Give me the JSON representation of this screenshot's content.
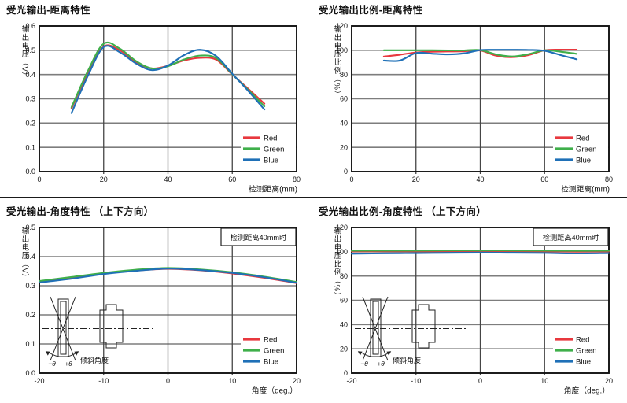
{
  "page": {
    "background": "#ffffff"
  },
  "chart_data": [
    {
      "type": "line",
      "title": "受光输出-距离特性",
      "xlabel": "检测距离(mm)",
      "ylabel": "输出电压（V）",
      "xlim": [
        0,
        80
      ],
      "ylim": [
        0,
        0.6
      ],
      "xticks": [
        0,
        20,
        40,
        60,
        80
      ],
      "xtick_labels": [
        "0",
        "20",
        "40",
        "60",
        "80"
      ],
      "yticks": [
        0,
        0.1,
        0.2,
        0.3,
        0.4,
        0.5,
        0.6
      ],
      "ytick_labels": [
        "0.0",
        "0.1",
        "0.2",
        "0.3",
        "0.4",
        "0.5",
        "0.6"
      ],
      "grid": true,
      "legend_position": "bottom-right",
      "x": [
        10,
        15,
        20,
        25,
        30,
        35,
        40,
        45,
        50,
        55,
        60,
        65,
        70
      ],
      "series": [
        {
          "name": "Red",
          "color": "#e8383e",
          "values": [
            0.26,
            0.405,
            0.515,
            0.5,
            0.452,
            0.425,
            0.436,
            0.458,
            0.469,
            0.461,
            0.4,
            0.341,
            0.28
          ]
        },
        {
          "name": "Green",
          "color": "#3faf4a",
          "values": [
            0.265,
            0.412,
            0.527,
            0.507,
            0.456,
            0.425,
            0.434,
            0.462,
            0.478,
            0.468,
            0.401,
            0.336,
            0.269
          ]
        },
        {
          "name": "Blue",
          "color": "#1f70b7",
          "values": [
            0.241,
            0.392,
            0.513,
            0.492,
            0.446,
            0.418,
            0.437,
            0.48,
            0.502,
            0.476,
            0.403,
            0.332,
            0.256
          ]
        }
      ]
    },
    {
      "type": "line",
      "title": "受光输出比例-距离特性",
      "xlabel": "检测距离(mm)",
      "ylabel": "输出电压比例（%）",
      "xlim": [
        0,
        80
      ],
      "ylim": [
        0,
        120
      ],
      "xticks": [
        0,
        20,
        40,
        60,
        80
      ],
      "xtick_labels": [
        "0",
        "20",
        "40",
        "60",
        "80"
      ],
      "yticks": [
        0,
        20,
        40,
        60,
        80,
        100,
        120
      ],
      "ytick_labels": [
        "0",
        "20",
        "40",
        "60",
        "80",
        "100",
        "120"
      ],
      "grid": true,
      "legend_position": "bottom-right",
      "x": [
        10,
        15,
        20,
        25,
        30,
        35,
        40,
        45,
        50,
        55,
        60,
        65,
        70
      ],
      "series": [
        {
          "name": "Red",
          "color": "#e8383e",
          "values": [
            94.8,
            96.3,
            98.2,
            98.8,
            99.0,
            99.2,
            99.8,
            95.5,
            94.3,
            96.0,
            100.0,
            100.5,
            100.5
          ]
        },
        {
          "name": "Green",
          "color": "#3faf4a",
          "values": [
            100.0,
            100.0,
            100.0,
            100.0,
            99.9,
            99.9,
            100.2,
            96.5,
            94.9,
            96.8,
            100.0,
            98.8,
            97.1
          ]
        },
        {
          "name": "Blue",
          "color": "#1f70b7",
          "values": [
            91.5,
            91.5,
            97.7,
            97.2,
            96.6,
            97.5,
            100.2,
            100.4,
            100.4,
            100.3,
            99.6,
            96.0,
            92.5
          ]
        }
      ]
    },
    {
      "type": "line",
      "title": "受光输出-角度特性 （上下方向）",
      "xlabel": "角度（deg.）",
      "ylabel": "输出电压（V）",
      "annotation": "检测距离40mm时",
      "xlim": [
        -20,
        20
      ],
      "ylim": [
        0,
        0.5
      ],
      "xticks": [
        -20,
        -10,
        0,
        10,
        20
      ],
      "xtick_labels": [
        "-20",
        "-10",
        "0",
        "10",
        "20"
      ],
      "yticks": [
        0,
        0.1,
        0.2,
        0.3,
        0.4,
        0.5
      ],
      "ytick_labels": [
        "0.0",
        "0.1",
        "0.2",
        "0.3",
        "0.4",
        "0.5"
      ],
      "grid": true,
      "legend_position": "bottom-right",
      "inset": {
        "neg_angle_label": "−θ",
        "pos_angle_label": "+θ",
        "caption": "倾斜角度"
      },
      "x": [
        -20,
        -15,
        -10,
        -5,
        0,
        5,
        10,
        15,
        20
      ],
      "series": [
        {
          "name": "Red",
          "color": "#e8383e",
          "values": [
            0.313,
            0.326,
            0.341,
            0.352,
            0.358,
            0.353,
            0.342,
            0.327,
            0.309
          ]
        },
        {
          "name": "Green",
          "color": "#3faf4a",
          "values": [
            0.316,
            0.33,
            0.344,
            0.355,
            0.361,
            0.356,
            0.346,
            0.331,
            0.313
          ]
        },
        {
          "name": "Blue",
          "color": "#1f70b7",
          "values": [
            0.311,
            0.324,
            0.34,
            0.351,
            0.359,
            0.354,
            0.344,
            0.329,
            0.31
          ]
        }
      ]
    },
    {
      "type": "line",
      "title": "受光输出比例-角度特性 （上下方向）",
      "xlabel": "角度（deg.）",
      "ylabel": "输出电压比例（%）",
      "annotation": "检测距离40mm时",
      "xlim": [
        -20,
        20
      ],
      "ylim": [
        0,
        120
      ],
      "xticks": [
        -20,
        -10,
        0,
        10,
        20
      ],
      "xtick_labels": [
        "-20",
        "-10",
        "0",
        "10",
        "20"
      ],
      "yticks": [
        0,
        20,
        40,
        60,
        80,
        100,
        120
      ],
      "ytick_labels": [
        "0",
        "20",
        "40",
        "60",
        "80",
        "100",
        "120"
      ],
      "grid": true,
      "legend_position": "bottom-right",
      "inset": {
        "neg_angle_label": "−θ",
        "pos_angle_label": "+θ",
        "caption": "倾斜角度"
      },
      "x": [
        -20,
        -15,
        -10,
        -5,
        0,
        5,
        10,
        15,
        20
      ],
      "series": [
        {
          "name": "Red",
          "color": "#e8383e",
          "values": [
            100.3,
            100.4,
            100.4,
            100.5,
            100.5,
            100.5,
            100.4,
            100.1,
            100.3
          ]
        },
        {
          "name": "Green",
          "color": "#3faf4a",
          "values": [
            100.9,
            101.0,
            101.0,
            101.1,
            101.1,
            101.1,
            101.0,
            100.8,
            100.9
          ]
        },
        {
          "name": "Blue",
          "color": "#1f70b7",
          "values": [
            98.4,
            98.7,
            98.9,
            99.1,
            99.3,
            99.2,
            99.0,
            98.6,
            98.9
          ]
        }
      ]
    }
  ]
}
